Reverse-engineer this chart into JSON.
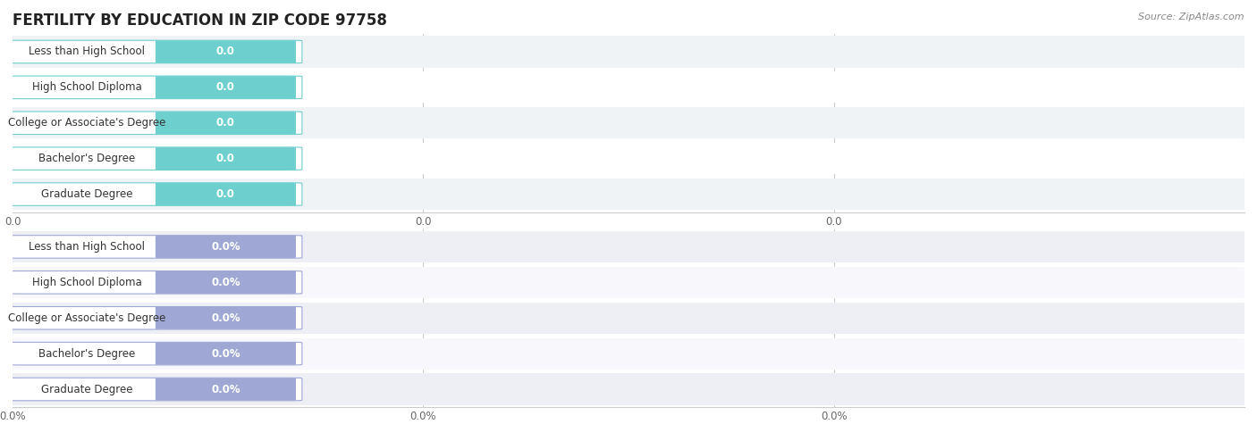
{
  "title": "FERTILITY BY EDUCATION IN ZIP CODE 97758",
  "source": "Source: ZipAtlas.com",
  "categories": [
    "Less than High School",
    "High School Diploma",
    "College or Associate's Degree",
    "Bachelor's Degree",
    "Graduate Degree"
  ],
  "top_values": [
    0.0,
    0.0,
    0.0,
    0.0,
    0.0
  ],
  "bottom_values": [
    0.0,
    0.0,
    0.0,
    0.0,
    0.0
  ],
  "top_bar_color": "#6dcfce",
  "bottom_bar_color": "#9fa8d4",
  "row_bg_colors": [
    "#f0f3f5",
    "#ffffff"
  ],
  "bottom_row_bg_colors": [
    "#eeeef5",
    "#f7f7fc"
  ],
  "label_bg_color": "#ffffff",
  "label_text_color": "#333333",
  "value_text_color": "#ffffff",
  "axis_text_color": "#666666",
  "title_color": "#222222",
  "source_color": "#888888",
  "grid_color": "#cccccc",
  "background_color": "#ffffff",
  "title_fontsize": 12,
  "label_fontsize": 8.5,
  "value_fontsize": 8.5,
  "axis_fontsize": 8.5,
  "source_fontsize": 8,
  "top_tick_labels": [
    "0.0",
    "0.0",
    "0.0"
  ],
  "bottom_tick_labels": [
    "0.0%",
    "0.0%",
    "0.0%"
  ]
}
